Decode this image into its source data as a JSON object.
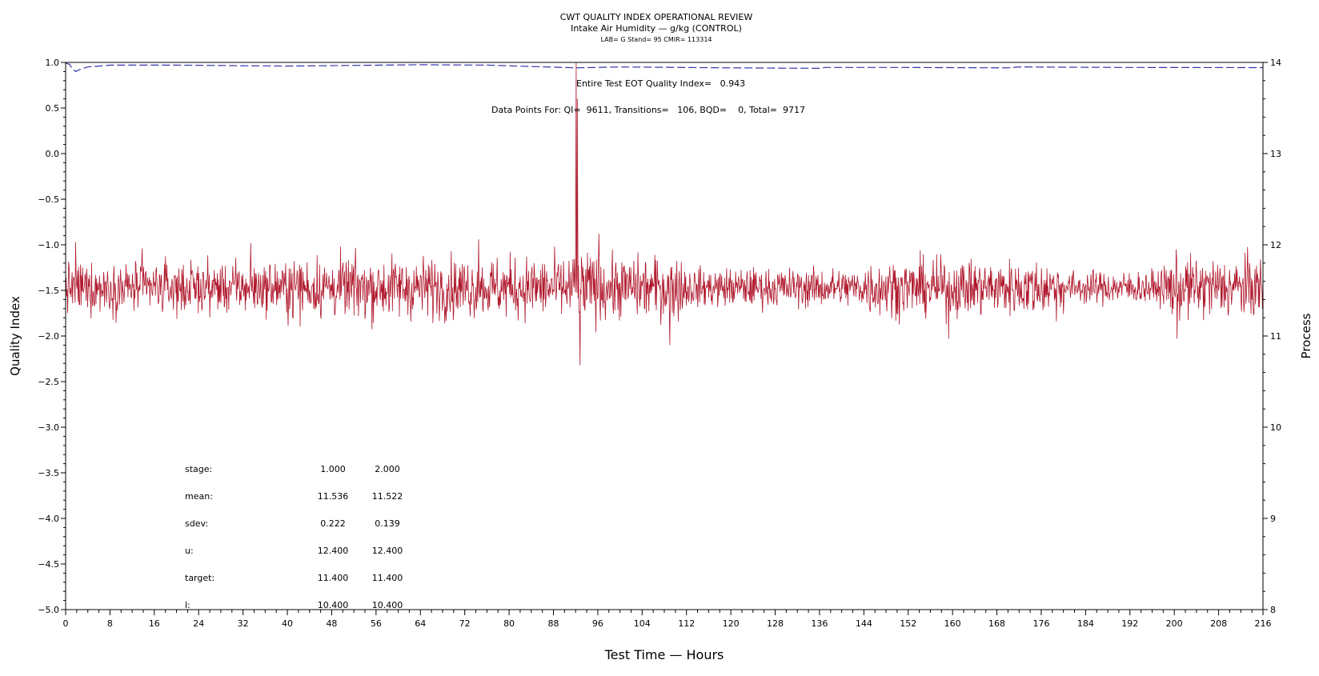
{
  "chart_data": {
    "type": "line",
    "title": "CWT QUALITY INDEX OPERATIONAL REVIEW",
    "subtitle": "Intake Air Humidity — g/kg (CONTROL)",
    "subtitle2": "LAB= G Stand= 95 CMIR= 113314",
    "xlabel": "Test Time — Hours",
    "ylabel": "Quality Index",
    "y2label": "Process",
    "xlim": [
      0,
      216
    ],
    "ylim": [
      -5.0,
      1.0
    ],
    "y2lim": [
      8,
      14
    ],
    "x_ticks": [
      "0",
      "8",
      "16",
      "24",
      "32",
      "40",
      "48",
      "56",
      "64",
      "72",
      "80",
      "88",
      "96",
      "104",
      "112",
      "120",
      "128",
      "136",
      "144",
      "152",
      "160",
      "168",
      "176",
      "184",
      "192",
      "200",
      "208",
      "216"
    ],
    "y_ticks": [
      "1.0",
      "0.5",
      "0.0",
      "−0.5",
      "−1.0",
      "−1.5",
      "−2.0",
      "−2.5",
      "−3.0",
      "−3.5",
      "−4.0",
      "−4.5",
      "−5.0"
    ],
    "y2_ticks": [
      "14",
      "13",
      "12",
      "11",
      "10",
      "9",
      "8"
    ],
    "annotations": {
      "eot_quality_index": "Entire Test EOT Quality Index=   0.943",
      "data_points": "Data Points For: QI=  9611, Transitions=   106, BQD=    0, Total=  9717"
    },
    "stats_table": {
      "rows": [
        {
          "label": "stage:",
          "v1": "1.000",
          "v2": "2.000"
        },
        {
          "label": "mean:",
          "v1": "11.536",
          "v2": "11.522"
        },
        {
          "label": "sdev:",
          "v1": "0.222",
          "v2": "0.139"
        },
        {
          "label": "u:",
          "v1": "12.400",
          "v2": "12.400"
        },
        {
          "label": "target:",
          "v1": "11.400",
          "v2": "11.400"
        },
        {
          "label": "l:",
          "v1": "10.400",
          "v2": "10.400"
        }
      ]
    },
    "series": [
      {
        "role": "quality-index",
        "color": "#3333aa",
        "style": "dashed",
        "x": [
          0,
          0.7,
          1.2,
          1.8,
          2.5,
          4,
          6,
          8,
          20,
          40,
          64,
          76,
          92,
          100,
          120,
          136,
          137,
          150,
          170,
          172,
          190,
          216
        ],
        "y": [
          0.99,
          0.98,
          0.93,
          0.9,
          0.92,
          0.95,
          0.96,
          0.97,
          0.97,
          0.96,
          0.975,
          0.97,
          0.94,
          0.95,
          0.94,
          0.935,
          0.945,
          0.945,
          0.94,
          0.95,
          0.945,
          0.943
        ]
      },
      {
        "role": "process",
        "color": "#b0182c",
        "style": "solid",
        "mean": 11.53,
        "segments": [
          {
            "x": [
              0,
              40
            ],
            "sdev": 0.18
          },
          {
            "x": [
              40,
              90
            ],
            "sdev": 0.22
          },
          {
            "x": [
              90,
              96
            ],
            "sdev": 0.25
          },
          {
            "x": [
              96,
              112
            ],
            "sdev": 0.22
          },
          {
            "x": [
              112,
              144
            ],
            "sdev": 0.14
          },
          {
            "x": [
              144,
              180
            ],
            "sdev": 0.2
          },
          {
            "x": [
              180,
              198
            ],
            "sdev": 0.12
          },
          {
            "x": [
              198,
              216
            ],
            "sdev": 0.22
          }
        ],
        "spikes": [
          {
            "x": 1.8,
            "y": 12.03
          },
          {
            "x": 13.8,
            "y": 11.96
          },
          {
            "x": 33.4,
            "y": 12.02
          },
          {
            "x": 74.5,
            "y": 12.06
          },
          {
            "x": 92.1,
            "y": 14.0
          },
          {
            "x": 92.3,
            "y": 13.6
          },
          {
            "x": 92.8,
            "y": 10.68
          },
          {
            "x": 96.2,
            "y": 12.12
          },
          {
            "x": 109,
            "y": 10.9
          },
          {
            "x": 159.3,
            "y": 10.97
          },
          {
            "x": 200.5,
            "y": 10.97
          }
        ]
      }
    ]
  }
}
